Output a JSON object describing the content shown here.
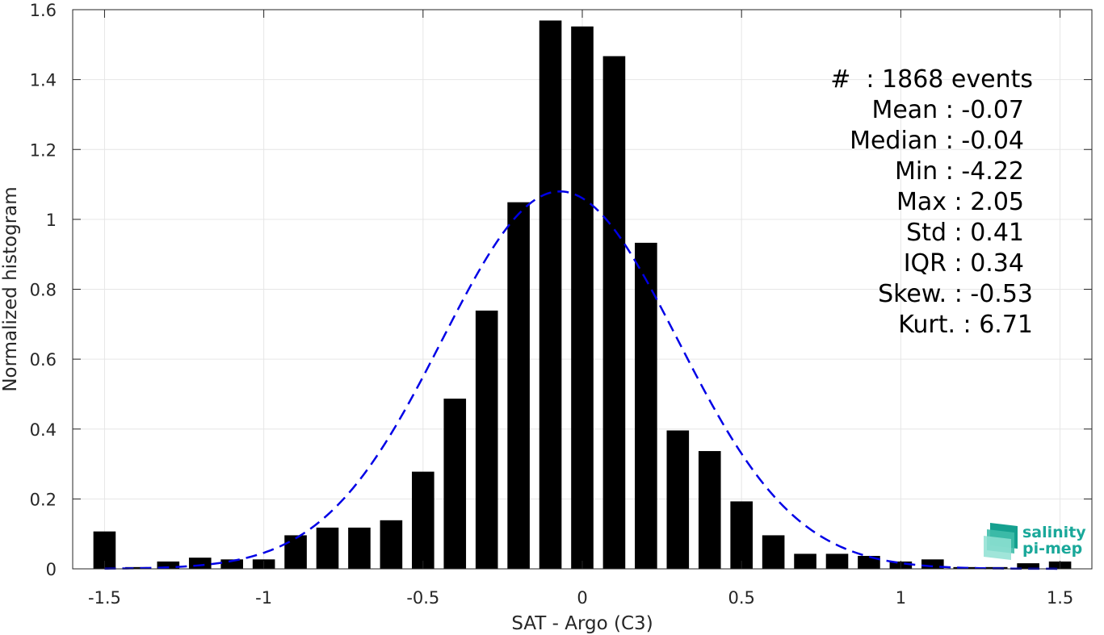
{
  "chart_data": {
    "type": "bar",
    "xlabel": "SAT - Argo (C3)",
    "ylabel": "Normalized histogram",
    "xlim": [
      -1.6,
      1.6
    ],
    "ylim": [
      0,
      1.6
    ],
    "grid": true,
    "x_ticks": [
      "-1.5",
      "-1",
      "-0.5",
      "0",
      "0.5",
      "1",
      "1.5"
    ],
    "x_tick_values": [
      -1.5,
      -1,
      -0.5,
      0,
      0.5,
      1,
      1.5
    ],
    "y_ticks": [
      "0",
      "0.2",
      "0.4",
      "0.6",
      "0.8",
      "1",
      "1.2",
      "1.4",
      "1.6"
    ],
    "y_tick_values": [
      0,
      0.2,
      0.4,
      0.6,
      0.8,
      1,
      1.2,
      1.4,
      1.6
    ],
    "bin_width": 0.1,
    "bar_color": "#000000",
    "x": [
      -1.5,
      -1.4,
      -1.3,
      -1.2,
      -1.1,
      -1.0,
      -0.9,
      -0.8,
      -0.7,
      -0.6,
      -0.5,
      -0.4,
      -0.3,
      -0.2,
      -0.1,
      0.0,
      0.1,
      0.2,
      0.3,
      0.4,
      0.5,
      0.6,
      0.7,
      0.8,
      0.9,
      1.0,
      1.1,
      1.2,
      1.3,
      1.4,
      1.5
    ],
    "values": [
      0.107,
      0.005,
      0.021,
      0.032,
      0.027,
      0.027,
      0.096,
      0.118,
      0.118,
      0.139,
      0.278,
      0.487,
      0.739,
      1.049,
      1.569,
      1.552,
      1.467,
      0.933,
      0.396,
      0.337,
      0.193,
      0.096,
      0.043,
      0.043,
      0.037,
      0.021,
      0.027,
      0.005,
      0.005,
      0.016,
      0.021
    ],
    "fit_curve": {
      "style": "dashed",
      "color": "#0000e6",
      "mean": -0.07,
      "std": 0.37,
      "peak": 1.08
    }
  },
  "stats": [
    "#  : 1868 events",
    "Mean : -0.07",
    "Median : -0.04",
    "Min : -4.22",
    "Max : 2.05",
    "Std : 0.41",
    "IQR : 0.34",
    "Skew. : -0.53",
    "Kurt. : 6.71"
  ],
  "logo": {
    "line1": "salinity",
    "line2": "pi-mep",
    "color": "#1aa89a"
  }
}
